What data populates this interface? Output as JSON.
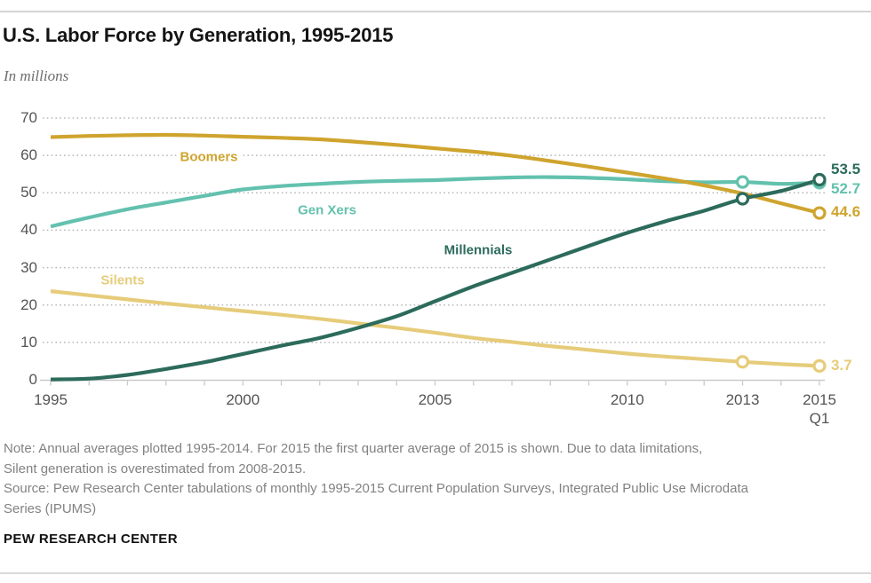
{
  "header": {
    "title": "U.S. Labor Force by Generation, 1995-2015",
    "subtitle": "In millions"
  },
  "chart_data": {
    "type": "line",
    "title": "U.S. Labor Force by Generation, 1995-2015",
    "units_label": "In millions",
    "grid": "dotted-horizontal",
    "legend_position": "inline-labels-on-lines",
    "x": [
      1995,
      1996,
      1997,
      1998,
      1999,
      2000,
      2001,
      2002,
      2003,
      2004,
      2005,
      2006,
      2007,
      2008,
      2009,
      2010,
      2011,
      2012,
      2013,
      2014,
      2015
    ],
    "x_axis": {
      "labeled_ticks": [
        {
          "year": 1995,
          "label": "1995"
        },
        {
          "year": 2000,
          "label": "2000"
        },
        {
          "year": 2005,
          "label": "2005"
        },
        {
          "year": 2010,
          "label": "2010"
        },
        {
          "year": 2013,
          "label": "2013"
        },
        {
          "year": 2015,
          "label": "2015",
          "sublabel": "Q1"
        }
      ],
      "minor_tick_every_year": true
    },
    "y_axis": {
      "ticks": [
        70,
        60,
        50,
        40,
        30,
        20,
        10,
        0
      ],
      "range": [
        0,
        70
      ]
    },
    "series": [
      {
        "id": "silents",
        "name": "Silents",
        "color": "#e6cc7a",
        "end_label": "3.7",
        "marker_years": [
          2013,
          2015
        ],
        "values": [
          23.7,
          22.6,
          21.5,
          20.4,
          19.4,
          18.4,
          17.4,
          16.3,
          15.1,
          13.9,
          12.6,
          11.2,
          10.1,
          9.0,
          8.0,
          7.0,
          6.2,
          5.5,
          4.8,
          4.2,
          3.7
        ]
      },
      {
        "id": "genx",
        "name": "Gen Xers",
        "color": "#63c1ae",
        "end_label": "52.7",
        "marker_years": [
          2013,
          2015
        ],
        "values": [
          41.0,
          43.4,
          45.6,
          47.4,
          49.2,
          50.9,
          51.8,
          52.4,
          52.9,
          53.2,
          53.4,
          53.8,
          54.1,
          54.2,
          54.0,
          53.6,
          53.1,
          52.8,
          52.9,
          52.4,
          52.7
        ]
      },
      {
        "id": "boomers",
        "name": "Boomers",
        "color": "#cfa42e",
        "end_label": "44.6",
        "marker_years": [
          2015
        ],
        "values": [
          64.9,
          65.2,
          65.4,
          65.5,
          65.3,
          65.0,
          64.7,
          64.3,
          63.6,
          62.8,
          61.9,
          61.0,
          59.9,
          58.5,
          57.0,
          55.4,
          53.8,
          52.0,
          49.8,
          47.2,
          44.6
        ]
      },
      {
        "id": "millennials",
        "name": "Millennials",
        "color": "#2c6b5b",
        "end_label": "53.5",
        "marker_years": [
          2013,
          2015
        ],
        "values": [
          0.1,
          0.3,
          1.3,
          2.9,
          4.7,
          6.9,
          9.1,
          11.2,
          13.9,
          17.0,
          21.0,
          25.0,
          28.6,
          32.2,
          35.8,
          39.3,
          42.4,
          45.2,
          48.4,
          50.5,
          53.5
        ]
      }
    ]
  },
  "notes": {
    "note_lines": [
      "Note: Annual averages plotted 1995-2014. For 2015 the first quarter average of 2015 is shown. Due to data limitations,",
      "Silent generation is overestimated from 2008-2015."
    ],
    "source_lines": [
      "Source: Pew Research Center tabulations of monthly 1995-2015 Current Population Surveys, Integrated Public Use Microdata",
      "Series (IPUMS)"
    ]
  },
  "footer": {
    "brand": "PEW RESEARCH CENTER"
  }
}
